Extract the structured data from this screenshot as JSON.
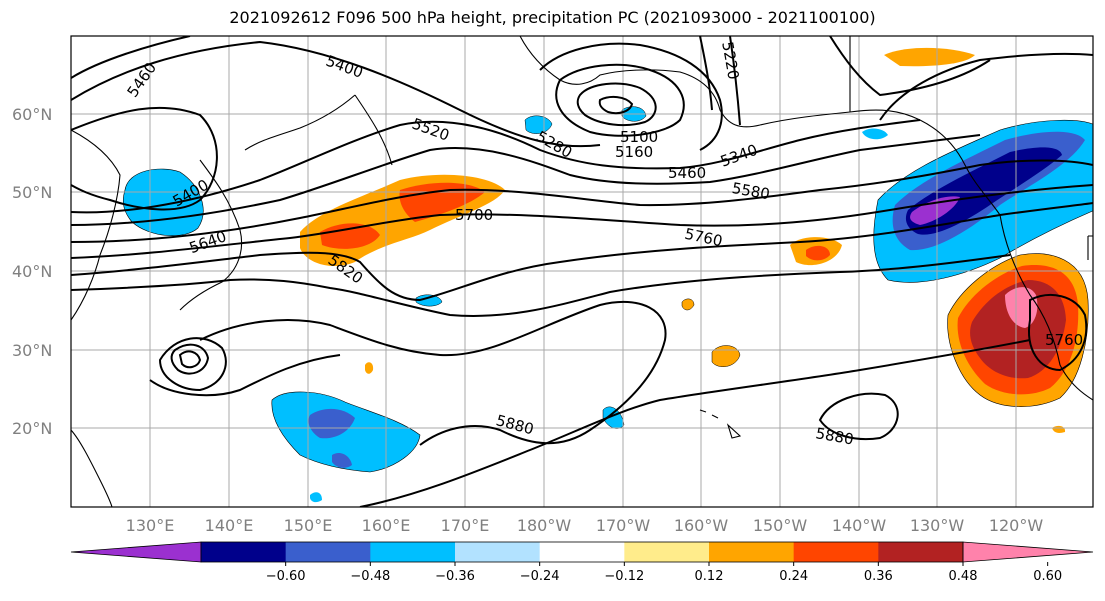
{
  "title": "2021092612 F096 500 hPa height, precipitation PC (2021093000 - 2021100100)",
  "lat_labels": [
    "60°N",
    "50°N",
    "40°N",
    "30°N",
    "20°N"
  ],
  "lon_labels": [
    "130°E",
    "140°E",
    "150°E",
    "160°E",
    "170°E",
    "180°W",
    "170°W",
    "160°W",
    "150°W",
    "140°W",
    "130°W",
    "120°W"
  ],
  "contour_labels": [
    "5460",
    "5400",
    "5400",
    "5220",
    "5520",
    "5280",
    "5100",
    "5160",
    "5340",
    "5460",
    "5580",
    "5700",
    "5640",
    "5760",
    "5820",
    "5880",
    "5880",
    "5760"
  ],
  "colorbar": {
    "ticks": [
      "−0.60",
      "−0.48",
      "−0.36",
      "−0.24",
      "−0.12",
      "0.12",
      "0.24",
      "0.36",
      "0.48",
      "0.60"
    ],
    "colors": [
      "#9b30d0",
      "#00008b",
      "#3a5fcd",
      "#00bfff",
      "#b2e2ff",
      "#ffffff",
      "#ffec8b",
      "#ffa500",
      "#ff4500",
      "#b22222",
      "#ff82ab"
    ]
  }
}
